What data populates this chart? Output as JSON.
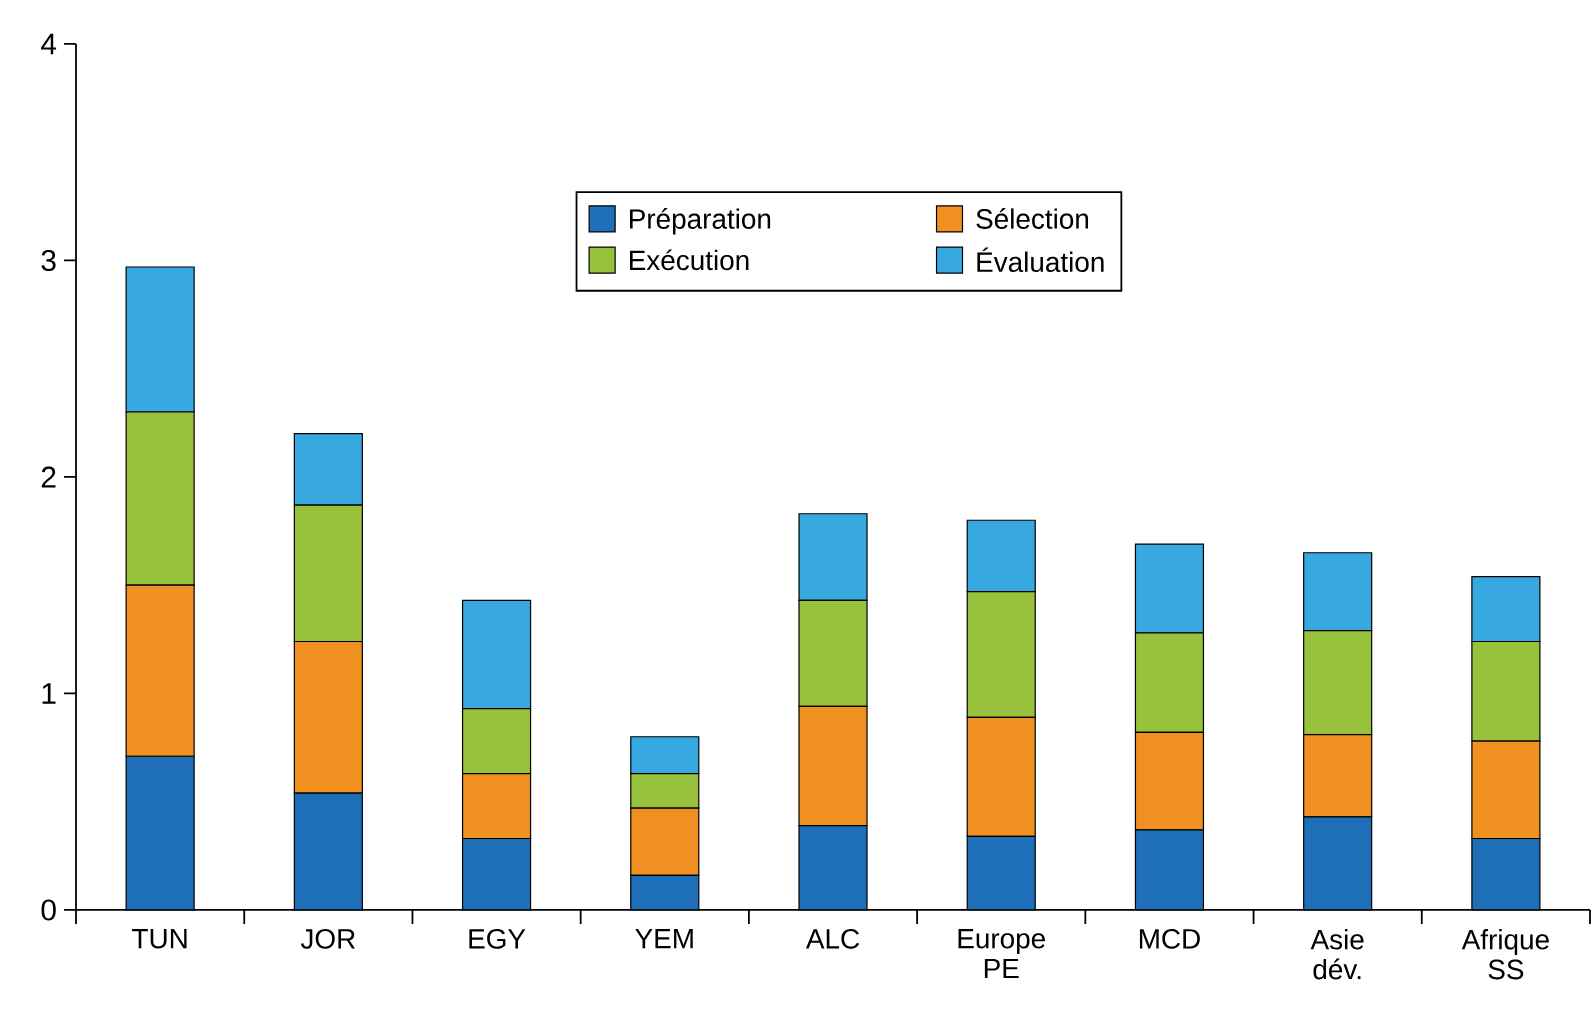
{
  "chart_data": {
    "type": "bar",
    "stacked": true,
    "categories": [
      "TUN",
      "JOR",
      "EGY",
      "YEM",
      "ALC",
      "Europe PE",
      "MCD",
      "Asie dév.",
      "Afrique SS"
    ],
    "series": [
      {
        "name": "Préparation",
        "color": "#1f6fb8",
        "values": [
          0.71,
          0.54,
          0.33,
          0.16,
          0.39,
          0.34,
          0.37,
          0.43,
          0.33
        ]
      },
      {
        "name": "Sélection",
        "color": "#f09020",
        "values": [
          0.79,
          0.7,
          0.3,
          0.31,
          0.55,
          0.55,
          0.45,
          0.38,
          0.45
        ]
      },
      {
        "name": "Exécution",
        "color": "#98c23c",
        "values": [
          0.8,
          0.63,
          0.3,
          0.16,
          0.49,
          0.58,
          0.46,
          0.48,
          0.46
        ]
      },
      {
        "name": "Évaluation",
        "color": "#38a8e0",
        "values": [
          0.67,
          0.33,
          0.5,
          0.17,
          0.4,
          0.33,
          0.41,
          0.36,
          0.3
        ]
      }
    ],
    "ylim": [
      0,
      4
    ],
    "yticks": [
      0,
      1,
      2,
      3,
      4
    ],
    "grid": false,
    "legend": "top"
  }
}
